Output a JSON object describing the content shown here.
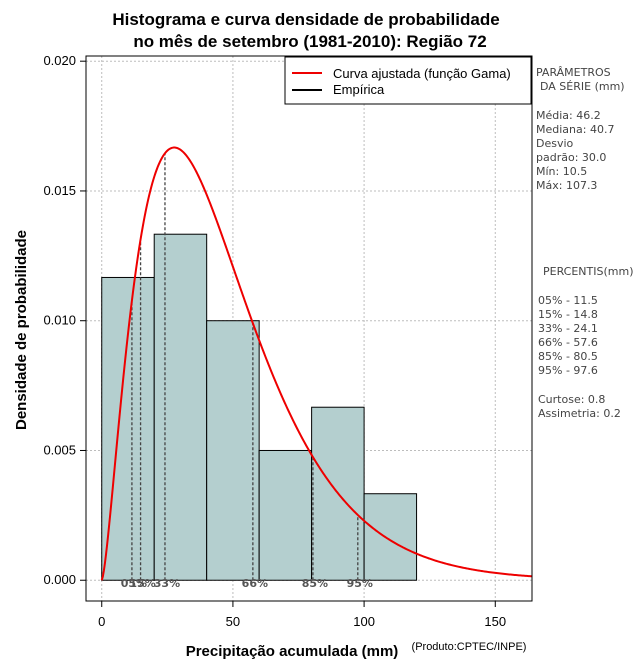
{
  "chart_data": {
    "type": "bar",
    "title_line1": "Histograma e curva densidade de probabilidade",
    "title_line2": "no mês de setembro (1981-2010): Região 72",
    "xlabel": "Precipitação acumulada (mm)",
    "ylabel": "Densidade de probabilidade",
    "credit": "(Produto:CPTEC/INPE)",
    "xlim": [
      -6,
      164
    ],
    "ylim": [
      -0.0008,
      0.0202
    ],
    "x_ticks": [
      0,
      50,
      100,
      150
    ],
    "y_ticks": [
      0.0,
      0.005,
      0.01,
      0.015,
      0.02
    ],
    "y_tick_labels": [
      "0.000",
      "0.005",
      "0.010",
      "0.015",
      "0.020"
    ],
    "bins": [
      {
        "start": 0,
        "end": 20,
        "density": 0.0116667
      },
      {
        "start": 20,
        "end": 40,
        "density": 0.0133333
      },
      {
        "start": 40,
        "end": 60,
        "density": 0.01
      },
      {
        "start": 60,
        "end": 80,
        "density": 0.005
      },
      {
        "start": 80,
        "end": 100,
        "density": 0.0066667
      },
      {
        "start": 100,
        "end": 120,
        "density": 0.0033333
      }
    ],
    "bar_color": "#b4cfcf",
    "curve_color": "#ee0000",
    "gamma_fit": {
      "shape": 2.49,
      "scale": 18.55,
      "x_max": 164
    },
    "legend": [
      {
        "label": "Curva ajustada (função Gama)",
        "color": "#ee0000"
      },
      {
        "label": "Empírica",
        "color": "#000000"
      }
    ],
    "percentile_lines": [
      {
        "label": "05%",
        "value": 11.5
      },
      {
        "label": "15%",
        "value": 14.8
      },
      {
        "label": "33%",
        "value": 24.1
      },
      {
        "label": "66%",
        "value": 57.6
      },
      {
        "label": "85%",
        "value": 80.5
      },
      {
        "label": "95%",
        "value": 97.6
      }
    ]
  },
  "side_panel": {
    "params_title_1": "PARÂMETROS",
    "params_title_2": "DA SÉRIE (mm)",
    "media": "Média:  46.2",
    "mediana": "Mediana:  40.7",
    "desvio_1": "Desvio",
    "desvio_2": "padrão:  30.0",
    "min": "Mín:  10.5",
    "max": "Máx:  107.3",
    "percentis_title": "PERCENTIS(mm)",
    "percentis": [
      "05% -  11.5",
      "15% -  14.8",
      "33% -  24.1",
      "66% -  57.6",
      "85% -  80.5",
      "95% -  97.6"
    ],
    "curtose": "Curtose:  0.8",
    "assimetria": "Assimetria:  0.2"
  }
}
